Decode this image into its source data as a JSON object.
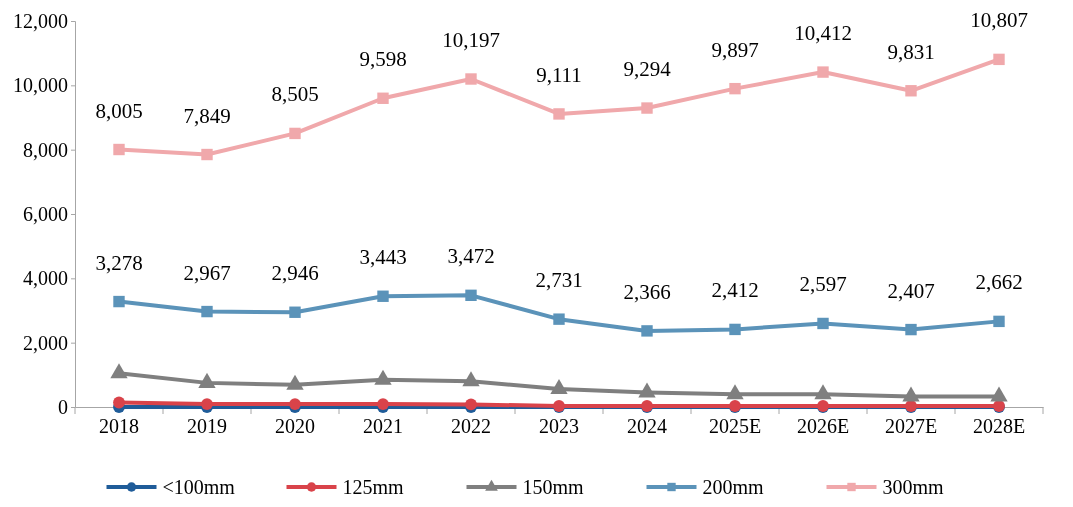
{
  "chart_data": {
    "type": "line",
    "categories": [
      "2018",
      "2019",
      "2020",
      "2021",
      "2022",
      "2023",
      "2024",
      "2025E",
      "2026E",
      "2027E",
      "2028E"
    ],
    "ylim": [
      0,
      12000
    ],
    "yticks": [
      {
        "value": 0,
        "label": "0"
      },
      {
        "value": 2000,
        "label": "2,000"
      },
      {
        "value": 4000,
        "label": "4,000"
      },
      {
        "value": 6000,
        "label": "6,000"
      },
      {
        "value": 8000,
        "label": "8,000"
      },
      {
        "value": 10000,
        "label": "10,000"
      },
      {
        "value": 12000,
        "label": "12,000"
      }
    ],
    "grid": false,
    "legend": "bottom",
    "series": [
      {
        "name": "<100mm",
        "color": "#1f5c99",
        "marker": "circle",
        "values": [
          0,
          0,
          0,
          0,
          0,
          0,
          0,
          0,
          0,
          0,
          0
        ]
      },
      {
        "name": "125mm",
        "color": "#d9434a",
        "marker": "circle",
        "values": [
          140,
          90,
          90,
          90,
          80,
          30,
          30,
          30,
          30,
          30,
          30
        ]
      },
      {
        "name": "150mm",
        "color": "#7f7f7f",
        "marker": "triangle",
        "values": [
          1050,
          750,
          690,
          850,
          800,
          560,
          450,
          400,
          400,
          330,
          330
        ]
      },
      {
        "name": "200mm",
        "color": "#5b93b9",
        "marker": "square",
        "values": [
          3278,
          2967,
          2946,
          3443,
          3472,
          2731,
          2366,
          2412,
          2597,
          2407,
          2662
        ],
        "value_labels": [
          "3,278",
          "2,967",
          "2,946",
          "3,443",
          "3,472",
          "2,731",
          "2,366",
          "2,412",
          "2,597",
          "2,407",
          "2,662"
        ]
      },
      {
        "name": "300mm",
        "color": "#f0a8ab",
        "marker": "square",
        "values": [
          8005,
          7849,
          8505,
          9598,
          10197,
          9111,
          9294,
          9897,
          10412,
          9831,
          10807
        ],
        "value_labels": [
          "8,005",
          "7,849",
          "8,505",
          "9,598",
          "10,197",
          "9,111",
          "9,294",
          "9,897",
          "10,412",
          "9,831",
          "10,807"
        ]
      }
    ]
  }
}
